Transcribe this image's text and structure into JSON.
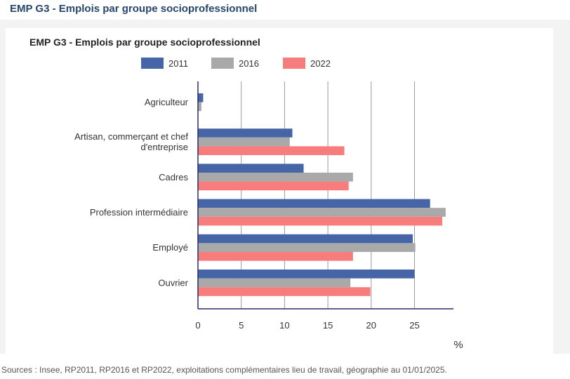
{
  "page": {
    "heading": "EMP G3 - Emplois par groupe socioprofessionnel",
    "source": "Sources : Insee, RP2011, RP2016 et RP2022, exploitations complémentaires lieu de travail, géographie au 01/01/2025."
  },
  "chart_data": {
    "type": "bar",
    "orientation": "horizontal",
    "title": "EMP G3 - Emplois par groupe socioprofessionnel",
    "xlabel": "%",
    "ylabel": "",
    "xlim": [
      0,
      29.5
    ],
    "xticks": [
      0,
      5,
      10,
      15,
      20,
      25
    ],
    "grid": true,
    "legend_position": "top",
    "categories": [
      [
        "Agriculteur"
      ],
      [
        "Artisan, commerçant et chef",
        "d'entreprise"
      ],
      [
        "Cadres"
      ],
      [
        "Profession intermédiaire"
      ],
      [
        "Employé"
      ],
      [
        "Ouvrier"
      ]
    ],
    "series": [
      {
        "name": "2011",
        "color": "#4665a6",
        "values": [
          0.6,
          10.9,
          12.2,
          26.8,
          24.8,
          25.0
        ]
      },
      {
        "name": "2016",
        "color": "#a9a9a9",
        "values": [
          0.4,
          10.6,
          17.9,
          28.6,
          25.1,
          17.6
        ]
      },
      {
        "name": "2022",
        "color": "#f77c7c",
        "values": [
          null,
          16.9,
          17.4,
          28.2,
          17.9,
          19.9
        ]
      }
    ]
  }
}
